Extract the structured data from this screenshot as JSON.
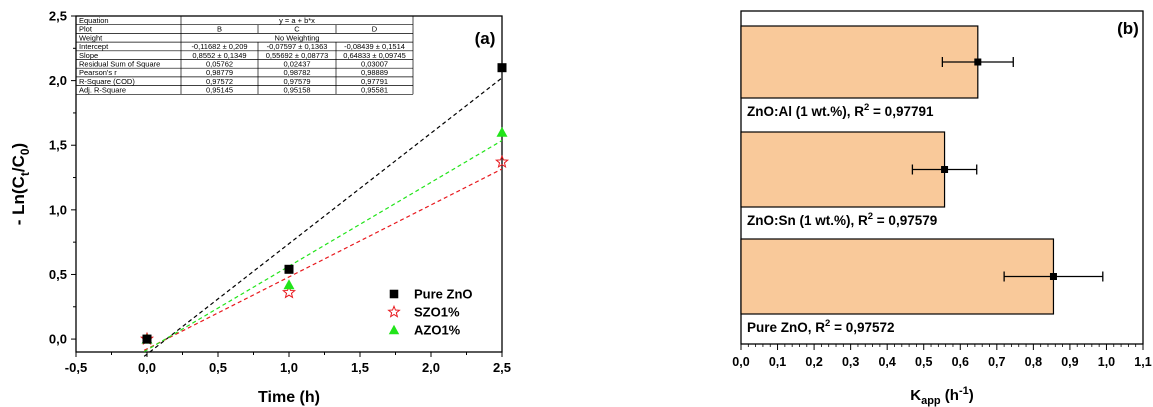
{
  "chart_data": [
    {
      "type": "scatter",
      "panel_label": "(a)",
      "xlabel": "Time (h)",
      "ylabel": {
        "main": "- Ln(C",
        "sub1": "t",
        "mid": "/C",
        "sub2": "0",
        "end": ")"
      },
      "xlim": [
        -0.5,
        2.5
      ],
      "ylim": [
        -0.1,
        2.5
      ],
      "xticks": [
        "-0,5",
        "0,0",
        "0,5",
        "1,0",
        "1,5",
        "2,0",
        "2,5"
      ],
      "yticks": [
        "0,0",
        "0,5",
        "1,0",
        "1,5",
        "2,0",
        "2,5"
      ],
      "grid": false,
      "legend_position": "bottom-right",
      "series": [
        {
          "name": "Pure ZnO",
          "marker": "square",
          "color": "#000000",
          "x": [
            0,
            1,
            2.5
          ],
          "y": [
            0,
            0.54,
            2.1
          ],
          "fit": {
            "intercept": -0.11682,
            "slope": 0.8552
          }
        },
        {
          "name": "SZO1%",
          "marker": "star-open",
          "color": "#e8191e",
          "x": [
            0,
            1,
            2.5
          ],
          "y": [
            0,
            0.36,
            1.37
          ],
          "fit": {
            "intercept": -0.07597,
            "slope": 0.55692
          }
        },
        {
          "name": "AZO1%",
          "marker": "triangle",
          "color": "#22e41a",
          "x": [
            0,
            1,
            2.5
          ],
          "y": [
            0,
            0.42,
            1.6
          ],
          "fit": {
            "intercept": -0.08439,
            "slope": 0.64833
          }
        }
      ],
      "fit_table": {
        "rows": [
          [
            "Equation",
            "y = a + b*x"
          ],
          [
            "Plot",
            "B",
            "C",
            "D"
          ],
          [
            "Weight",
            "No Weighting"
          ],
          [
            "Intercept",
            "-0,11682 ± 0,209",
            "-0,07597 ± 0,1363",
            "-0,08439 ± 0,1514"
          ],
          [
            "Slope",
            "0,8552 ± 0,1349",
            "0,55692 ± 0,08773",
            "0,64833 ± 0,09745"
          ],
          [
            "Residual Sum of Square",
            "0,05762",
            "0,02437",
            "0,03007"
          ],
          [
            "Pearson's r",
            "0,98779",
            "0,98782",
            "0,98889"
          ],
          [
            "R-Square (COD)",
            "0,97572",
            "0,97579",
            "0,97791"
          ],
          [
            "Adj. R-Square",
            "0,95145",
            "0,95158",
            "0,95581"
          ]
        ]
      }
    },
    {
      "type": "bar",
      "orientation": "horizontal",
      "panel_label": "(b)",
      "xlabel": {
        "main": "K",
        "sub": "app",
        "mid": " (h",
        "sup": "-1",
        "end": ")"
      },
      "xlim": [
        0,
        1.1
      ],
      "xticks": [
        "0,0",
        "0,1",
        "0,2",
        "0,3",
        "0,4",
        "0,5",
        "0,6",
        "0,7",
        "0,8",
        "0,9",
        "1,0",
        "1,1"
      ],
      "bar_color": "#f9c99a",
      "categories": [
        {
          "label": "ZnO:Al (1 wt.%), R",
          "sup": "2",
          "tail": " = 0,97791",
          "value": 0.648,
          "error": 0.097
        },
        {
          "label": "ZnO:Sn (1 wt.%), R",
          "sup": "2",
          "tail": " = 0,97579",
          "value": 0.557,
          "error": 0.088
        },
        {
          "label": "Pure ZnO, R",
          "sup": "2",
          "tail": " = 0,97572",
          "value": 0.855,
          "error": 0.135
        }
      ]
    }
  ]
}
